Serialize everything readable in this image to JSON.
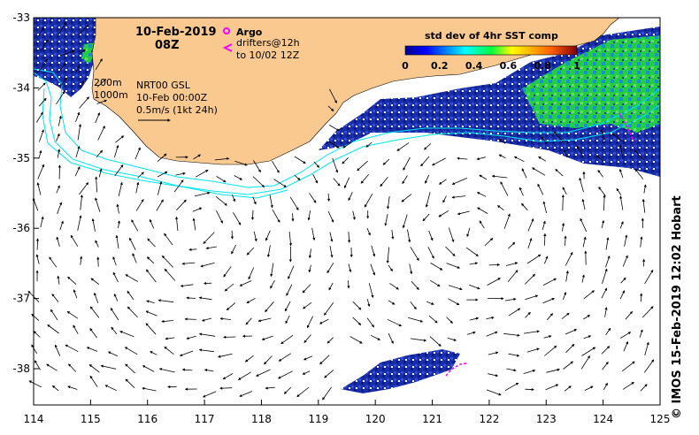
{
  "map": {
    "date_title": "10-Feb-2019",
    "time_title": "08Z",
    "legend_argo": "Argo",
    "legend_drifters_1": "drifters@12h",
    "legend_drifters_2": "to 10/02 12Z",
    "contour_200": "200m",
    "contour_1000": "1000m",
    "product": "NRT00 GSL",
    "product_time": "10-Feb 00:00Z",
    "scale_note": "0.5m/s (1kt 24h)",
    "colorbar_title": "std dev of 4hr SST comp",
    "colorbar_ticks": [
      "0",
      "0.2",
      "0.4",
      "0.6",
      "0.8",
      "1"
    ],
    "credit": "©  IMOS 15-Feb-2019 12:02 Hobart",
    "lon_ticks": [
      "114",
      "115",
      "116",
      "117",
      "118",
      "119",
      "120",
      "121",
      "122",
      "123",
      "124",
      "125"
    ],
    "lat_ticks": [
      "-33",
      "-34",
      "-35",
      "-36",
      "-37",
      "-38"
    ],
    "colors": {
      "land": "#fac990",
      "contour": "#00e5ee",
      "argo": "#ff00ff",
      "drifter": "#ff00ff",
      "sst_low": "#1230a0",
      "sst_mid": "#10c040"
    }
  }
}
